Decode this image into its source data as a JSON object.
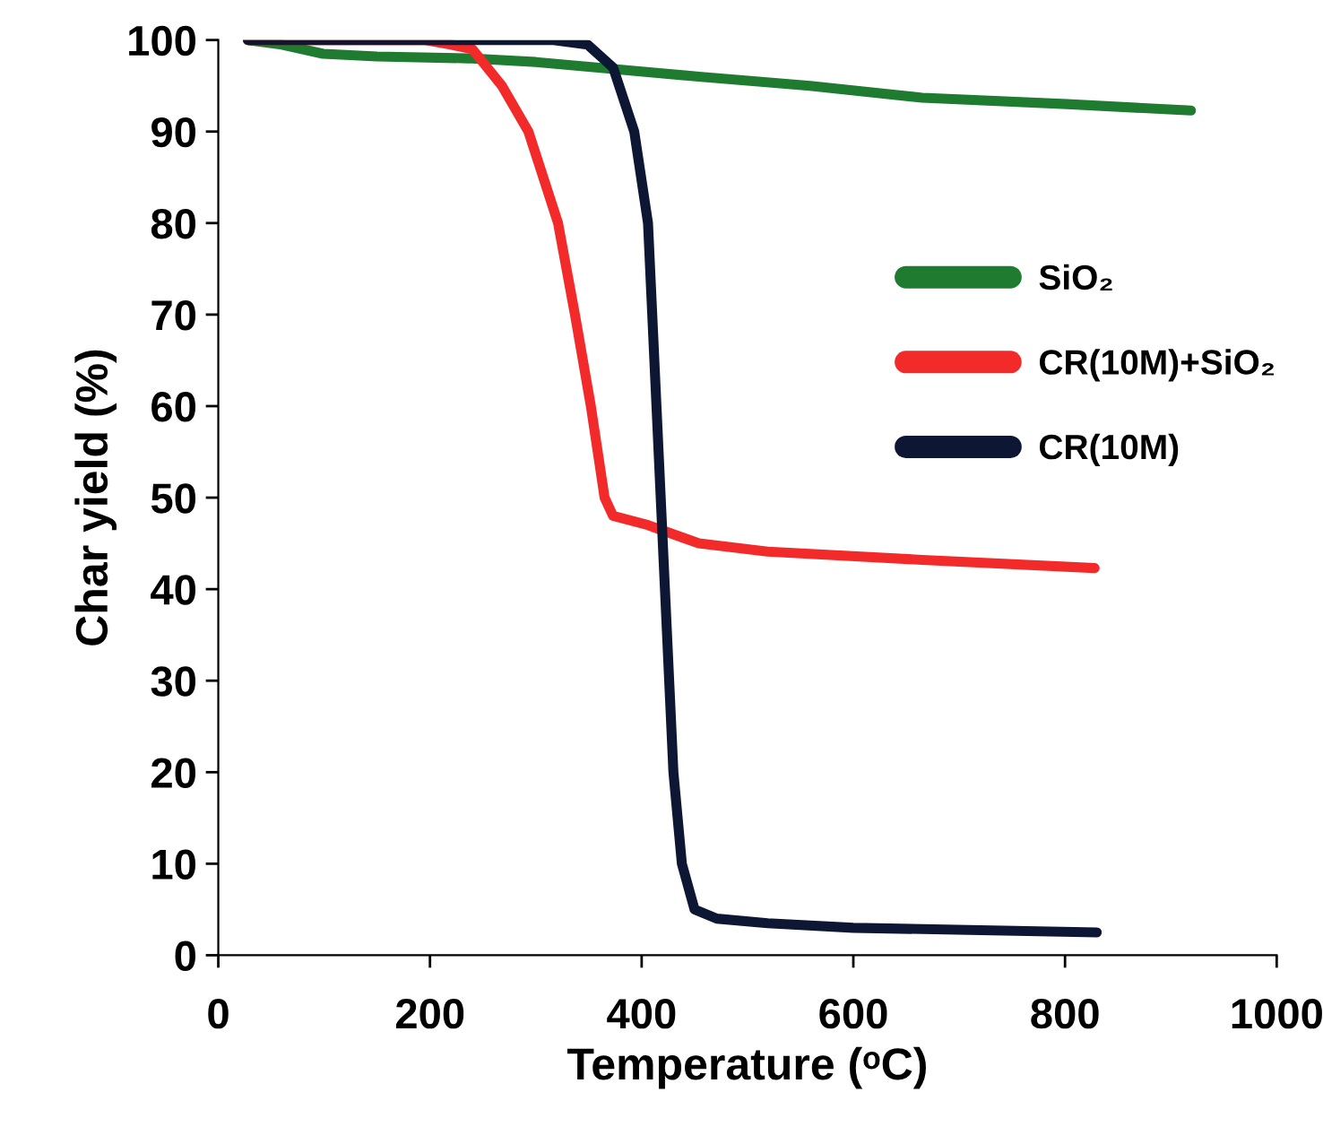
{
  "chart_data": {
    "type": "line",
    "xlabel": "Temperature (ᵒC)",
    "ylabel": "Char yield (%)",
    "xlim": [
      0,
      1000
    ],
    "ylim": [
      0,
      100
    ],
    "xticks": [
      0,
      200,
      400,
      600,
      800,
      1000
    ],
    "yticks": [
      0,
      10,
      20,
      30,
      40,
      50,
      60,
      70,
      80,
      90,
      100
    ],
    "grid": false,
    "legend": "right",
    "marker": "none",
    "line_style": "solid",
    "series": [
      {
        "name": "SiO₂",
        "color": "#1e7b30",
        "x": [
          28,
          60,
          99,
          150,
          236,
          300,
          357,
          454,
          559,
          665,
          802,
          919
        ],
        "values": [
          100,
          99.5,
          98.5,
          98.2,
          98,
          97.6,
          97,
          96,
          95,
          93.7,
          93,
          92.3
        ]
      },
      {
        "name": "CR(10M)+SiO₂",
        "color": "#f22a2a",
        "x": [
          28,
          196,
          220,
          240,
          268,
          293,
          321,
          337,
          352,
          365,
          373,
          406,
          454,
          519,
          665,
          828
        ],
        "values": [
          100,
          100,
          99.5,
          99,
          95,
          90,
          80,
          70,
          60,
          50,
          48,
          47,
          45,
          44.1,
          43.2,
          42.3
        ]
      },
      {
        "name": "CR(10M)",
        "color": "#0d1733",
        "x": [
          28,
          150,
          317,
          349,
          373,
          393,
          406,
          414,
          422,
          430,
          438,
          450,
          471,
          519,
          600,
          830
        ],
        "values": [
          100,
          100,
          100,
          99.5,
          97,
          90,
          80,
          60,
          40,
          20,
          10,
          5,
          4,
          3.5,
          3,
          2.5
        ]
      }
    ]
  }
}
